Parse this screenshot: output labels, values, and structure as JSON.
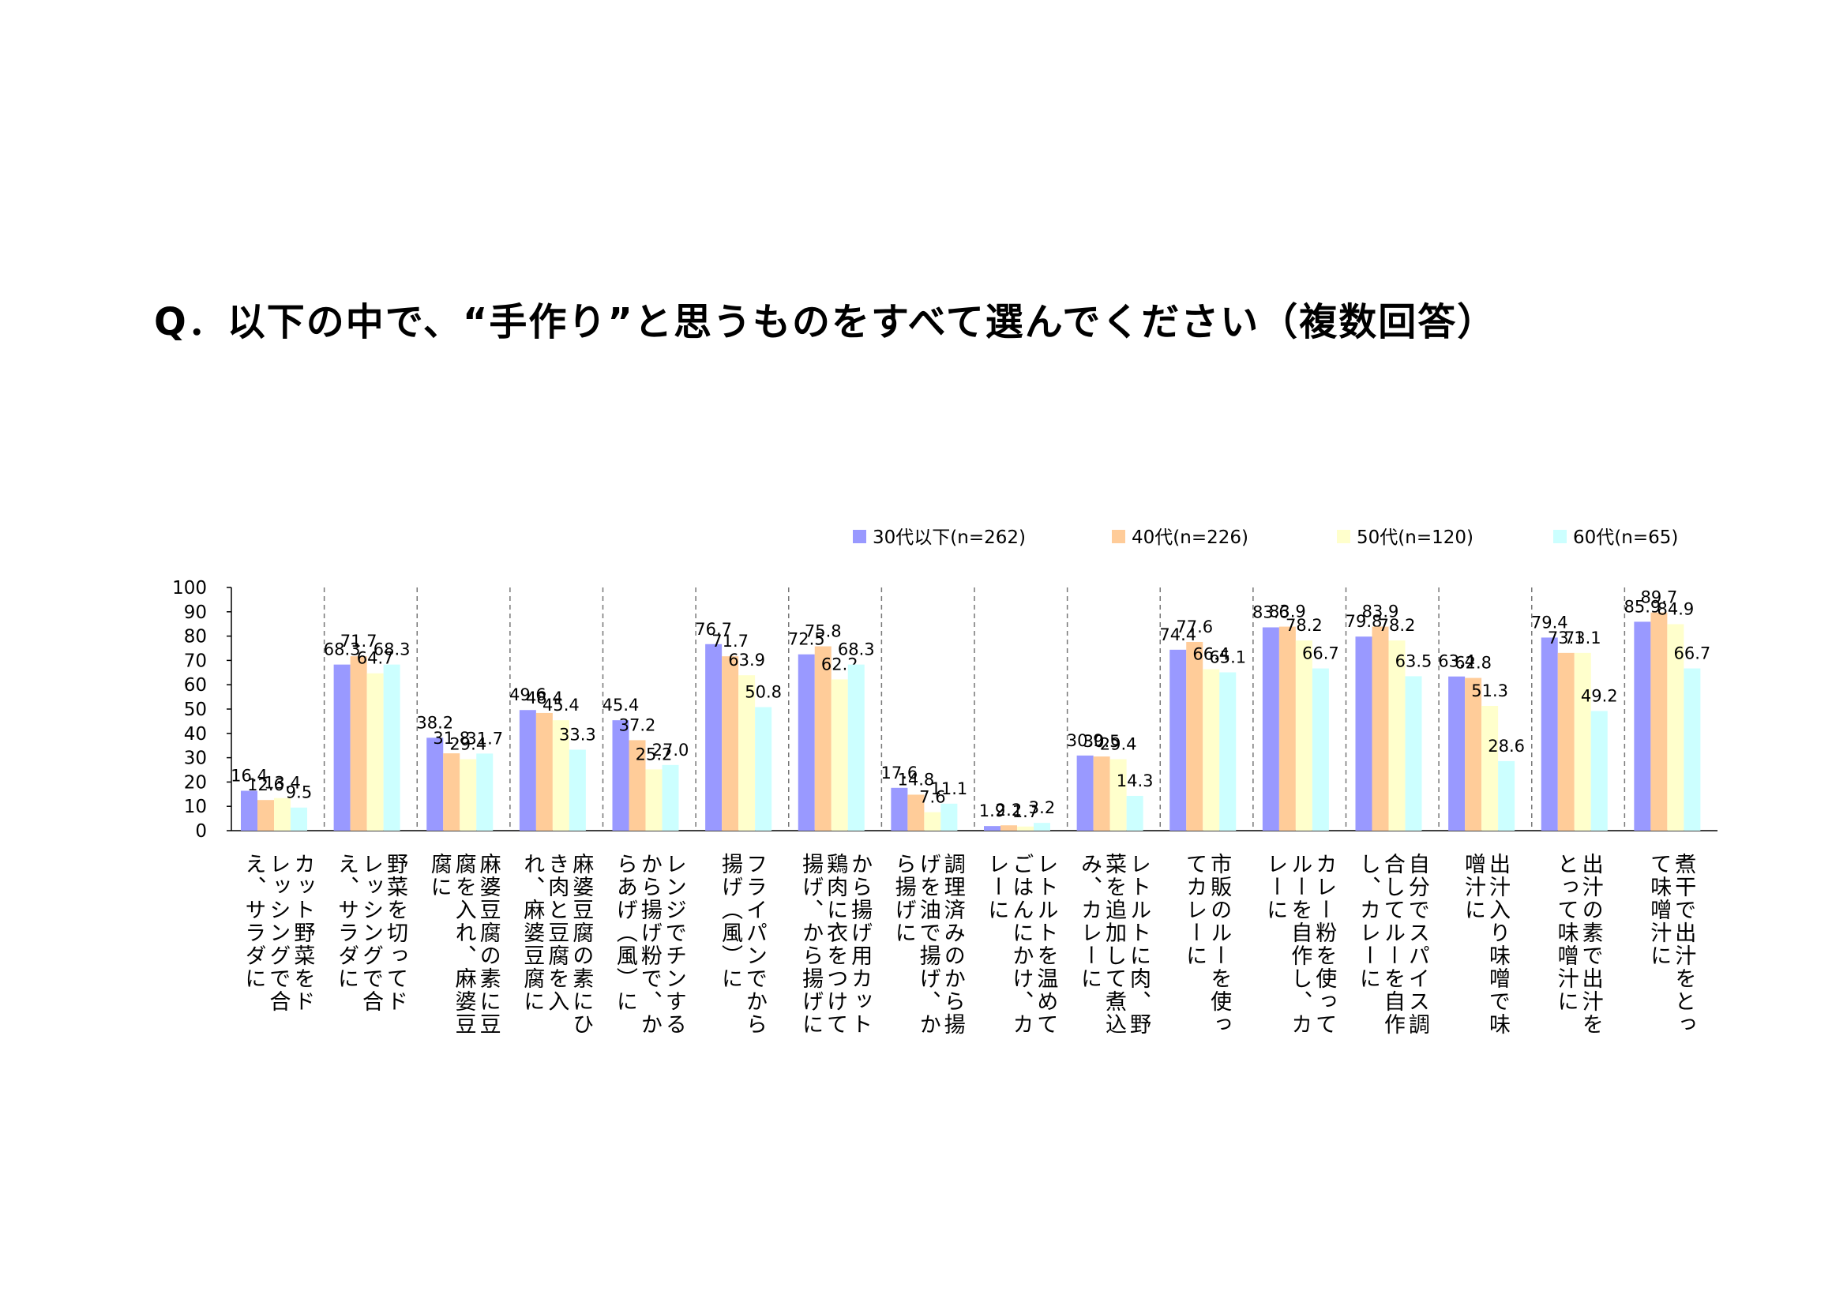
{
  "title": "Q．以下の中で、“手作り”と思うものをすべて選んでください（複数回答）",
  "chart_data": {
    "type": "bar",
    "ylim": [
      0,
      100
    ],
    "yticks": [
      0,
      10,
      20,
      30,
      40,
      50,
      60,
      70,
      80,
      90,
      100
    ],
    "legend_position": "top",
    "categories": [
      [
        "カット野菜をド",
        "レッシングで合",
        "え、サラダに"
      ],
      [
        "野菜を切ってド",
        "レッシングで合",
        "え、サラダに"
      ],
      [
        "麻婆豆腐の素に豆",
        "腐を入れ、麻婆豆",
        "腐に"
      ],
      [
        "麻婆豆腐の素にひ",
        "き肉と豆腐を入",
        "れ、麻婆豆腐に"
      ],
      [
        "レンジでチンする",
        "から揚げ粉で、か",
        "らあげ（風）に"
      ],
      [
        "フライパンでから",
        "揚げ（風）に"
      ],
      [
        "から揚げ用カット",
        "鶏肉に衣をつけて",
        "揚げ、から揚げに"
      ],
      [
        "調理済みのから揚",
        "げを油で揚げ、か",
        "ら揚げに"
      ],
      [
        "レトルトを温めて",
        "ごはんにかけ、カ",
        "レーに"
      ],
      [
        "レトルトに肉、野",
        "菜を追加して煮込",
        "み、カレーに"
      ],
      [
        "市販のルーを使っ",
        "てカレーに"
      ],
      [
        "カレー粉を使って",
        "ルーを自作し、カ",
        "レーに"
      ],
      [
        "自分でスパイス調",
        "合してルーを自作",
        "し、カレーに"
      ],
      [
        "出汁入り味噌で味",
        "噌汁に"
      ],
      [
        "出汁の素で出汁を",
        "とって味噌汁に"
      ],
      [
        "煮干で出汁をとっ",
        "て味噌汁に"
      ]
    ],
    "series": [
      {
        "name": "30代以下(n=262)",
        "color": "#9999FF",
        "values": [
          16.4,
          68.3,
          38.2,
          49.6,
          45.4,
          76.7,
          72.5,
          17.6,
          1.9,
          30.9,
          74.4,
          83.6,
          79.8,
          63.4,
          79.4,
          85.9
        ]
      },
      {
        "name": "40代(n=226)",
        "color": "#FFCC99",
        "values": [
          12.6,
          71.7,
          31.8,
          48.4,
          37.2,
          71.7,
          75.8,
          14.8,
          2.2,
          30.5,
          77.6,
          83.9,
          83.9,
          62.8,
          73.1,
          89.7
        ]
      },
      {
        "name": "50代(n=120)",
        "color": "#FFFFCC",
        "values": [
          13.4,
          64.7,
          29.4,
          45.4,
          25.2,
          63.9,
          62.2,
          7.6,
          1.7,
          29.4,
          66.4,
          78.2,
          78.2,
          51.3,
          73.1,
          84.9
        ]
      },
      {
        "name": "60代(n=65)",
        "color": "#CCFFFF",
        "values": [
          9.5,
          68.3,
          31.7,
          33.3,
          27.0,
          50.8,
          68.3,
          11.1,
          3.2,
          14.3,
          65.1,
          66.7,
          63.5,
          28.6,
          49.2,
          66.7
        ]
      }
    ],
    "labels": [
      [
        "16.4",
        "12.6",
        "13.4",
        "9.5"
      ],
      [
        "68.3",
        "71.7",
        "64.7",
        "68.3"
      ],
      [
        "38.2",
        "31.8",
        "29.4",
        "31.7"
      ],
      [
        "49.6",
        "48.4",
        "45.4",
        "33.3"
      ],
      [
        "45.4",
        "37.2",
        "25.2",
        "27.0"
      ],
      [
        "76.7",
        "71.7",
        "63.9",
        "50.8"
      ],
      [
        "72.5",
        "75.8",
        "62.2",
        "68.3"
      ],
      [
        "17.6",
        "14.8",
        "7.6",
        "11.1"
      ],
      [
        "1.9",
        "2.2",
        "1.7",
        "3.2"
      ],
      [
        "30.9",
        "30.5",
        "29.4",
        "14.3"
      ],
      [
        "74.4",
        "77.6",
        "66.4",
        "65.1"
      ],
      [
        "83.6",
        "83.9",
        "78.2",
        "66.7"
      ],
      [
        "79.8",
        "83.9",
        "78.2",
        "63.5"
      ],
      [
        "63.4",
        "62.8",
        "51.3",
        "28.6"
      ],
      [
        "79.4",
        "73.1",
        "73.1",
        "49.2"
      ],
      [
        "85.9",
        "89.7",
        "84.9",
        "66.7"
      ]
    ]
  }
}
